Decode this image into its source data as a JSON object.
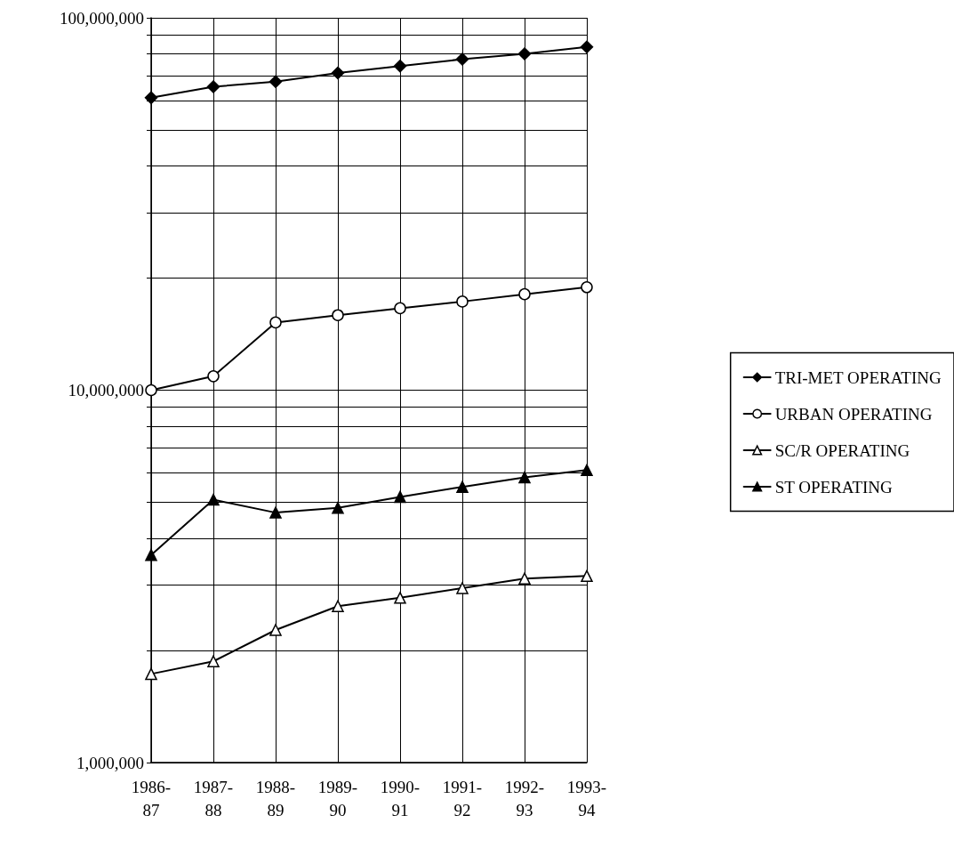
{
  "chart_data": {
    "type": "line",
    "categories": [
      "1986-87",
      "1987-88",
      "1988-89",
      "1989-90",
      "1990-91",
      "1991-92",
      "1992-93",
      "1993-94"
    ],
    "series": [
      {
        "name": "TRI-MET OPERATING",
        "color": "#000000",
        "marker": "diamond",
        "values": [
          61000000,
          65300000,
          67400000,
          71100000,
          74200000,
          77400000,
          80000000,
          83500000
        ]
      },
      {
        "name": "URBAN OPERATING",
        "color": "#000000",
        "marker": "circle",
        "colors": [
          "#ffffff",
          "#ffffff",
          "#ffffff",
          "#ffffff",
          "#ffffff",
          "#ffffff",
          "#ffffff",
          "#ffffff"
        ],
        "values": [
          10000000,
          10900000,
          15200000,
          15900000,
          16600000,
          17300000,
          18100000,
          18900000
        ]
      },
      {
        "name": "SC/R OPERATING",
        "color": "#000000",
        "marker": "triangle",
        "colors": [
          "#ffffff",
          "#ffffff",
          "#ffffff",
          "#ffffff",
          "#ffffff",
          "#ffffff",
          "#ffffff",
          "#ffffff"
        ],
        "values": [
          1730000,
          1870000,
          2270000,
          2630000,
          2770000,
          2940000,
          3120000,
          3170000
        ]
      },
      {
        "name": "ST OPERATING",
        "color": "#000000",
        "marker": "triangle",
        "values": [
          3610000,
          5080000,
          4690000,
          4830000,
          5170000,
          5500000,
          5830000,
          6100000
        ]
      }
    ],
    "log": "y",
    "ylim": [
      1000000,
      100000000
    ],
    "yticks": [
      {
        "value": 1000000,
        "label": "1,000,000"
      },
      {
        "value": 2000000,
        "label": null
      },
      {
        "value": 3000000,
        "label": null
      },
      {
        "value": 4000000,
        "label": null
      },
      {
        "value": 5000000,
        "label": null
      },
      {
        "value": 6000000,
        "label": null
      },
      {
        "value": 7000000,
        "label": null
      },
      {
        "value": 8000000,
        "label": null
      },
      {
        "value": 9000000,
        "label": null
      },
      {
        "value": 10000000,
        "label": "10,000,000"
      },
      {
        "value": 20000000,
        "label": null
      },
      {
        "value": 30000000,
        "label": null
      },
      {
        "value": 40000000,
        "label": null
      },
      {
        "value": 50000000,
        "label": null
      },
      {
        "value": 60000000,
        "label": null
      },
      {
        "value": 70000000,
        "label": null
      },
      {
        "value": 80000000,
        "label": null
      },
      {
        "value": 90000000,
        "label": null
      },
      {
        "value": 100000000,
        "label": "100,000,000"
      }
    ],
    "grid": true,
    "legend": "right",
    "line_style": "solid"
  }
}
